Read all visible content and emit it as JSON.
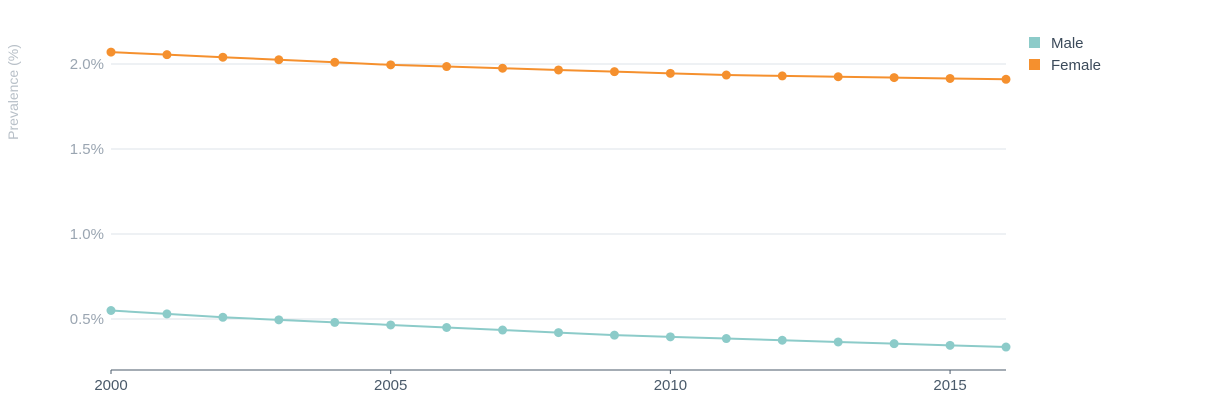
{
  "chart_data": {
    "type": "line",
    "title": "",
    "xlabel": "",
    "ylabel": "Prevalence (%)",
    "x": [
      2000,
      2001,
      2002,
      2003,
      2004,
      2005,
      2006,
      2007,
      2008,
      2009,
      2010,
      2011,
      2012,
      2013,
      2014,
      2015,
      2016
    ],
    "x_ticks": [
      "2000",
      "2005",
      "2010",
      "2015"
    ],
    "y_ticks": [
      "0.5%",
      "1.0%",
      "1.5%",
      "2.0%"
    ],
    "ylim": [
      0.2,
      2.2
    ],
    "xlim": [
      2000,
      2016
    ],
    "grid": "horizontal",
    "legend_position": "top-right",
    "series": [
      {
        "name": "Male",
        "color": "#8ccbc9",
        "values": [
          0.55,
          0.53,
          0.51,
          0.495,
          0.48,
          0.465,
          0.45,
          0.435,
          0.42,
          0.405,
          0.395,
          0.385,
          0.375,
          0.365,
          0.355,
          0.345,
          0.335
        ]
      },
      {
        "name": "Female",
        "color": "#f5902e",
        "values": [
          2.07,
          2.055,
          2.04,
          2.025,
          2.01,
          1.995,
          1.985,
          1.975,
          1.965,
          1.955,
          1.945,
          1.935,
          1.93,
          1.925,
          1.92,
          1.915,
          1.91
        ]
      }
    ]
  }
}
